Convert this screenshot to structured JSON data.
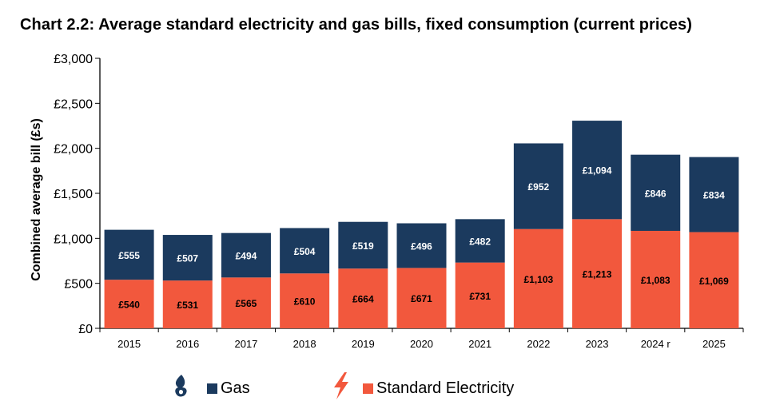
{
  "title": "Chart 2.2: Average standard electricity and gas bills, fixed consumption (current prices)",
  "colors": {
    "gas": "#1b3a5e",
    "electricity": "#f2583d",
    "axis": "#000000",
    "gridline": "#d9d9d9"
  },
  "legend": {
    "gas_label": "Gas",
    "electricity_label": "Standard Electricity",
    "gas_icon": "flame-icon",
    "electricity_icon": "lightning-bolt-icon"
  },
  "chart_data": {
    "type": "bar",
    "stacked": true,
    "title": "Chart 2.2: Average standard electricity and gas bills, fixed consumption (current prices)",
    "xlabel": "",
    "ylabel": "Combined average bill (£s)",
    "ylim": [
      0,
      3000
    ],
    "yticks": [
      0,
      500,
      1000,
      1500,
      2000,
      2500,
      3000
    ],
    "ytick_labels": [
      "£0",
      "£500",
      "£1,000",
      "£1,500",
      "£2,000",
      "£2,500",
      "£3,000"
    ],
    "grid": true,
    "legend_position": "bottom",
    "categories": [
      "2015",
      "2016",
      "2017",
      "2018",
      "2019",
      "2020",
      "2021",
      "2022",
      "2023",
      "2024 r",
      "2025"
    ],
    "series": [
      {
        "name": "Standard Electricity",
        "values": [
          540,
          531,
          565,
          610,
          664,
          671,
          731,
          1103,
          1213,
          1083,
          1069
        ],
        "labels": [
          "£540",
          "£531",
          "£565",
          "£610",
          "£664",
          "£671",
          "£731",
          "£1,103",
          "£1,213",
          "£1,083",
          "£1,069"
        ]
      },
      {
        "name": "Gas",
        "values": [
          555,
          507,
          494,
          504,
          519,
          496,
          482,
          952,
          1094,
          846,
          834
        ],
        "labels": [
          "£555",
          "£507",
          "£494",
          "£504",
          "£519",
          "£496",
          "£482",
          "£952",
          "£1,094",
          "£846",
          "£834"
        ]
      }
    ]
  }
}
